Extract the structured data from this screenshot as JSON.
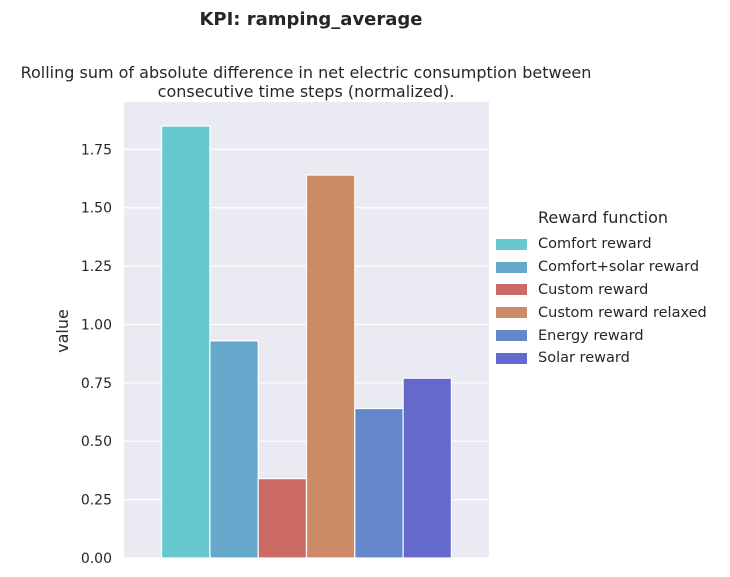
{
  "chart_data": {
    "type": "bar",
    "title": "KPI: ramping_average",
    "subtitle_lines": [
      "Rolling sum of absolute difference in net electric consumption between",
      "consecutive time steps (normalized)."
    ],
    "ylabel": "value",
    "xlabel": "",
    "ylim": [
      0,
      1.85
    ],
    "yticks": [
      "0.00",
      "0.25",
      "0.50",
      "0.75",
      "1.00",
      "1.25",
      "1.50",
      "1.75"
    ],
    "grid": true,
    "legend_title": "Reward function",
    "legend_position": "right",
    "series": [
      {
        "name": "Comfort reward",
        "value": 1.85,
        "color": "#66c7cc"
      },
      {
        "name": "Comfort+solar reward",
        "value": 0.93,
        "color": "#66a8cc"
      },
      {
        "name": "Custom reward",
        "value": 0.34,
        "color": "#cc6b66"
      },
      {
        "name": "Custom reward relaxed",
        "value": 1.64,
        "color": "#cc8b66"
      },
      {
        "name": "Energy reward",
        "value": 0.64,
        "color": "#6686cc"
      },
      {
        "name": "Solar reward",
        "value": 0.77,
        "color": "#6669cc"
      }
    ]
  }
}
